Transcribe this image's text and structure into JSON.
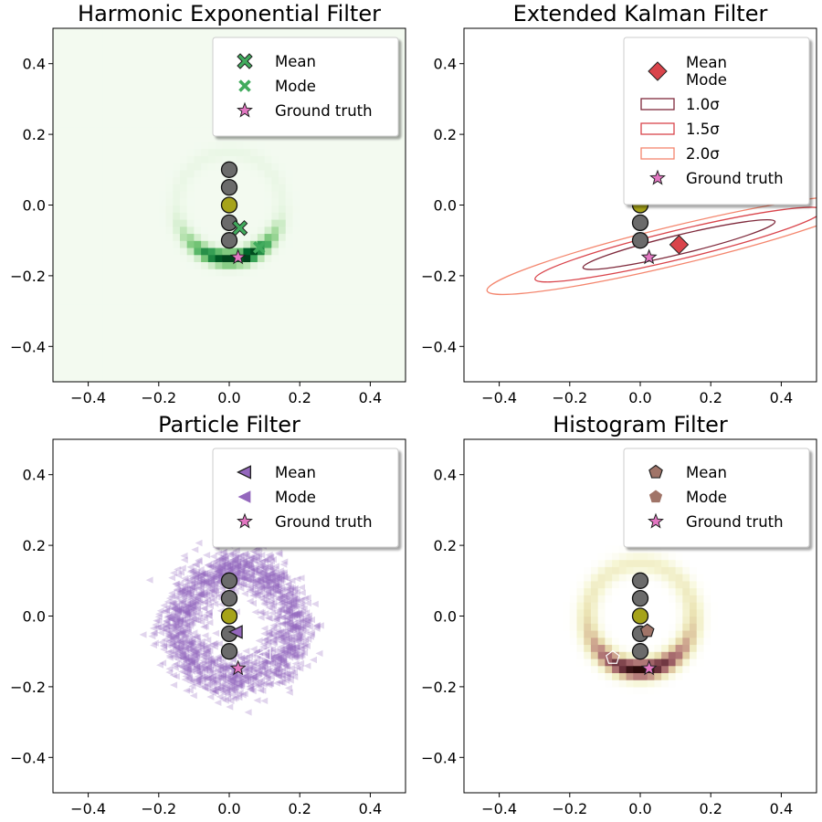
{
  "chart_data": [
    {
      "id": "hef",
      "type": "heatmap",
      "title": "Harmonic Exponential Filter",
      "xlim": [
        -0.5,
        0.5
      ],
      "ylim": [
        -0.5,
        0.5
      ],
      "xticks": [
        "−0.4",
        "−0.2",
        "0.0",
        "0.2",
        "0.4"
      ],
      "yticks": [
        "−0.4",
        "−0.2",
        "0.0",
        "0.2",
        "0.4"
      ],
      "colormap": "Greens",
      "density_shape": "ring",
      "ring_center": [
        0.0,
        0.0
      ],
      "ring_radius": 0.15,
      "ring_concentration_direction": "down",
      "landmarks": [
        [
          0,
          0.1
        ],
        [
          0,
          0.05
        ],
        [
          0,
          0.0
        ],
        [
          0,
          -0.05
        ],
        [
          0,
          -0.1
        ]
      ],
      "current_landmark_index": 2,
      "estimates": [
        {
          "name": "Mean",
          "x": 0.03,
          "y": -0.065,
          "marker": "X",
          "color": "#41ab5d",
          "edge": "#222222"
        },
        {
          "name": "Mode",
          "x": 0.085,
          "y": -0.12,
          "marker": "x",
          "color": "#41ab5d",
          "edge": "none"
        },
        {
          "name": "Ground truth",
          "x": 0.025,
          "y": -0.148,
          "marker": "star",
          "color": "#e377c2",
          "edge": "#222222"
        }
      ],
      "legend": {
        "location": "upper right",
        "entries": [
          "Mean",
          "Mode",
          "Ground truth"
        ]
      }
    },
    {
      "id": "ekf",
      "type": "scatter",
      "title": "Extended Kalman Filter",
      "xlim": [
        -0.5,
        0.5
      ],
      "ylim": [
        -0.5,
        0.5
      ],
      "xticks": [
        "−0.4",
        "−0.2",
        "0.0",
        "0.2",
        "0.4"
      ],
      "yticks": [
        "−0.4",
        "−0.2",
        "0.0",
        "0.2",
        "0.4"
      ],
      "landmarks": [
        [
          0,
          0.1
        ],
        [
          0,
          0.05
        ],
        [
          0,
          0.0
        ],
        [
          0,
          -0.05
        ],
        [
          0,
          -0.1
        ]
      ],
      "current_landmark_index": 2,
      "estimates": [
        {
          "name": "Mean",
          "x": 0.11,
          "y": -0.112,
          "marker": "D",
          "color": "#d9444b",
          "edge": "#222222"
        },
        {
          "name": "Ground truth",
          "x": 0.025,
          "y": -0.148,
          "marker": "star",
          "color": "#e377c2",
          "edge": "#222222"
        }
      ],
      "ellipses": [
        {
          "label": "1.0σ",
          "cx": 0.11,
          "cy": -0.112,
          "a": 0.28,
          "b": 0.027,
          "angle_deg": 13.5,
          "color": "#7f2a3c"
        },
        {
          "label": "1.5σ",
          "cx": 0.11,
          "cy": -0.112,
          "a": 0.42,
          "b": 0.041,
          "angle_deg": 13.5,
          "color": "#d9444b"
        },
        {
          "label": "2.0σ",
          "cx": 0.11,
          "cy": -0.112,
          "a": 0.56,
          "b": 0.055,
          "angle_deg": 13.5,
          "color": "#f4866e"
        }
      ],
      "legend": {
        "location": "upper right",
        "entries": [
          "Mean",
          "Mode",
          "1.0σ",
          "1.5σ",
          "2.0σ",
          "Ground truth"
        ]
      }
    },
    {
      "id": "pf",
      "type": "scatter",
      "title": "Particle Filter",
      "xlim": [
        -0.5,
        0.5
      ],
      "ylim": [
        -0.5,
        0.5
      ],
      "xticks": [
        "−0.4",
        "−0.2",
        "0.0",
        "0.2",
        "0.4"
      ],
      "yticks": [
        "−0.4",
        "−0.2",
        "0.0",
        "0.2",
        "0.4"
      ],
      "particle_color": "#9467bd",
      "particle_shape": "ring",
      "ring_center": [
        0.02,
        0.0
      ],
      "ring_radius": 0.17,
      "landmarks": [
        [
          0,
          0.1
        ],
        [
          0,
          0.05
        ],
        [
          0,
          0.0
        ],
        [
          0,
          -0.05
        ],
        [
          0,
          -0.1
        ]
      ],
      "current_landmark_index": 2,
      "estimates": [
        {
          "name": "Mean",
          "x": 0.02,
          "y": -0.045,
          "marker": "<",
          "color": "#9467bd",
          "edge": "#222222"
        },
        {
          "name": "Mode",
          "x": 0.1,
          "y": -0.108,
          "marker": "<",
          "color": "none",
          "edge": "#ffffff"
        },
        {
          "name": "Ground truth",
          "x": 0.025,
          "y": -0.148,
          "marker": "star",
          "color": "#e377c2",
          "edge": "#222222"
        }
      ],
      "legend": {
        "location": "upper right",
        "entries": [
          "Mean",
          "Mode",
          "Ground truth"
        ]
      }
    },
    {
      "id": "hist",
      "type": "heatmap",
      "title": "Histogram Filter",
      "xlim": [
        -0.5,
        0.5
      ],
      "ylim": [
        -0.5,
        0.5
      ],
      "xticks": [
        "−0.4",
        "−0.2",
        "0.0",
        "0.2",
        "0.4"
      ],
      "yticks": [
        "−0.4",
        "−0.2",
        "0.0",
        "0.2",
        "0.4"
      ],
      "colormap": "pink_r",
      "density_shape": "ring",
      "ring_center": [
        0.0,
        0.0
      ],
      "ring_radius": 0.15,
      "ring_concentration_direction": "down",
      "landmarks": [
        [
          0,
          0.1
        ],
        [
          0,
          0.05
        ],
        [
          0,
          0.0
        ],
        [
          0,
          -0.05
        ],
        [
          0,
          -0.1
        ]
      ],
      "current_landmark_index": 2,
      "estimates": [
        {
          "name": "Mean",
          "x": 0.02,
          "y": -0.042,
          "marker": "pentagon",
          "color": "#a07468",
          "edge": "#222222"
        },
        {
          "name": "Mode",
          "x": -0.078,
          "y": -0.118,
          "marker": "pentagon",
          "color": "none",
          "edge": "#ffffff"
        },
        {
          "name": "Ground truth",
          "x": 0.025,
          "y": -0.148,
          "marker": "star",
          "color": "#e377c2",
          "edge": "#222222"
        }
      ],
      "legend": {
        "location": "upper right",
        "entries": [
          "Mean",
          "Mode",
          "Ground truth"
        ]
      }
    }
  ]
}
